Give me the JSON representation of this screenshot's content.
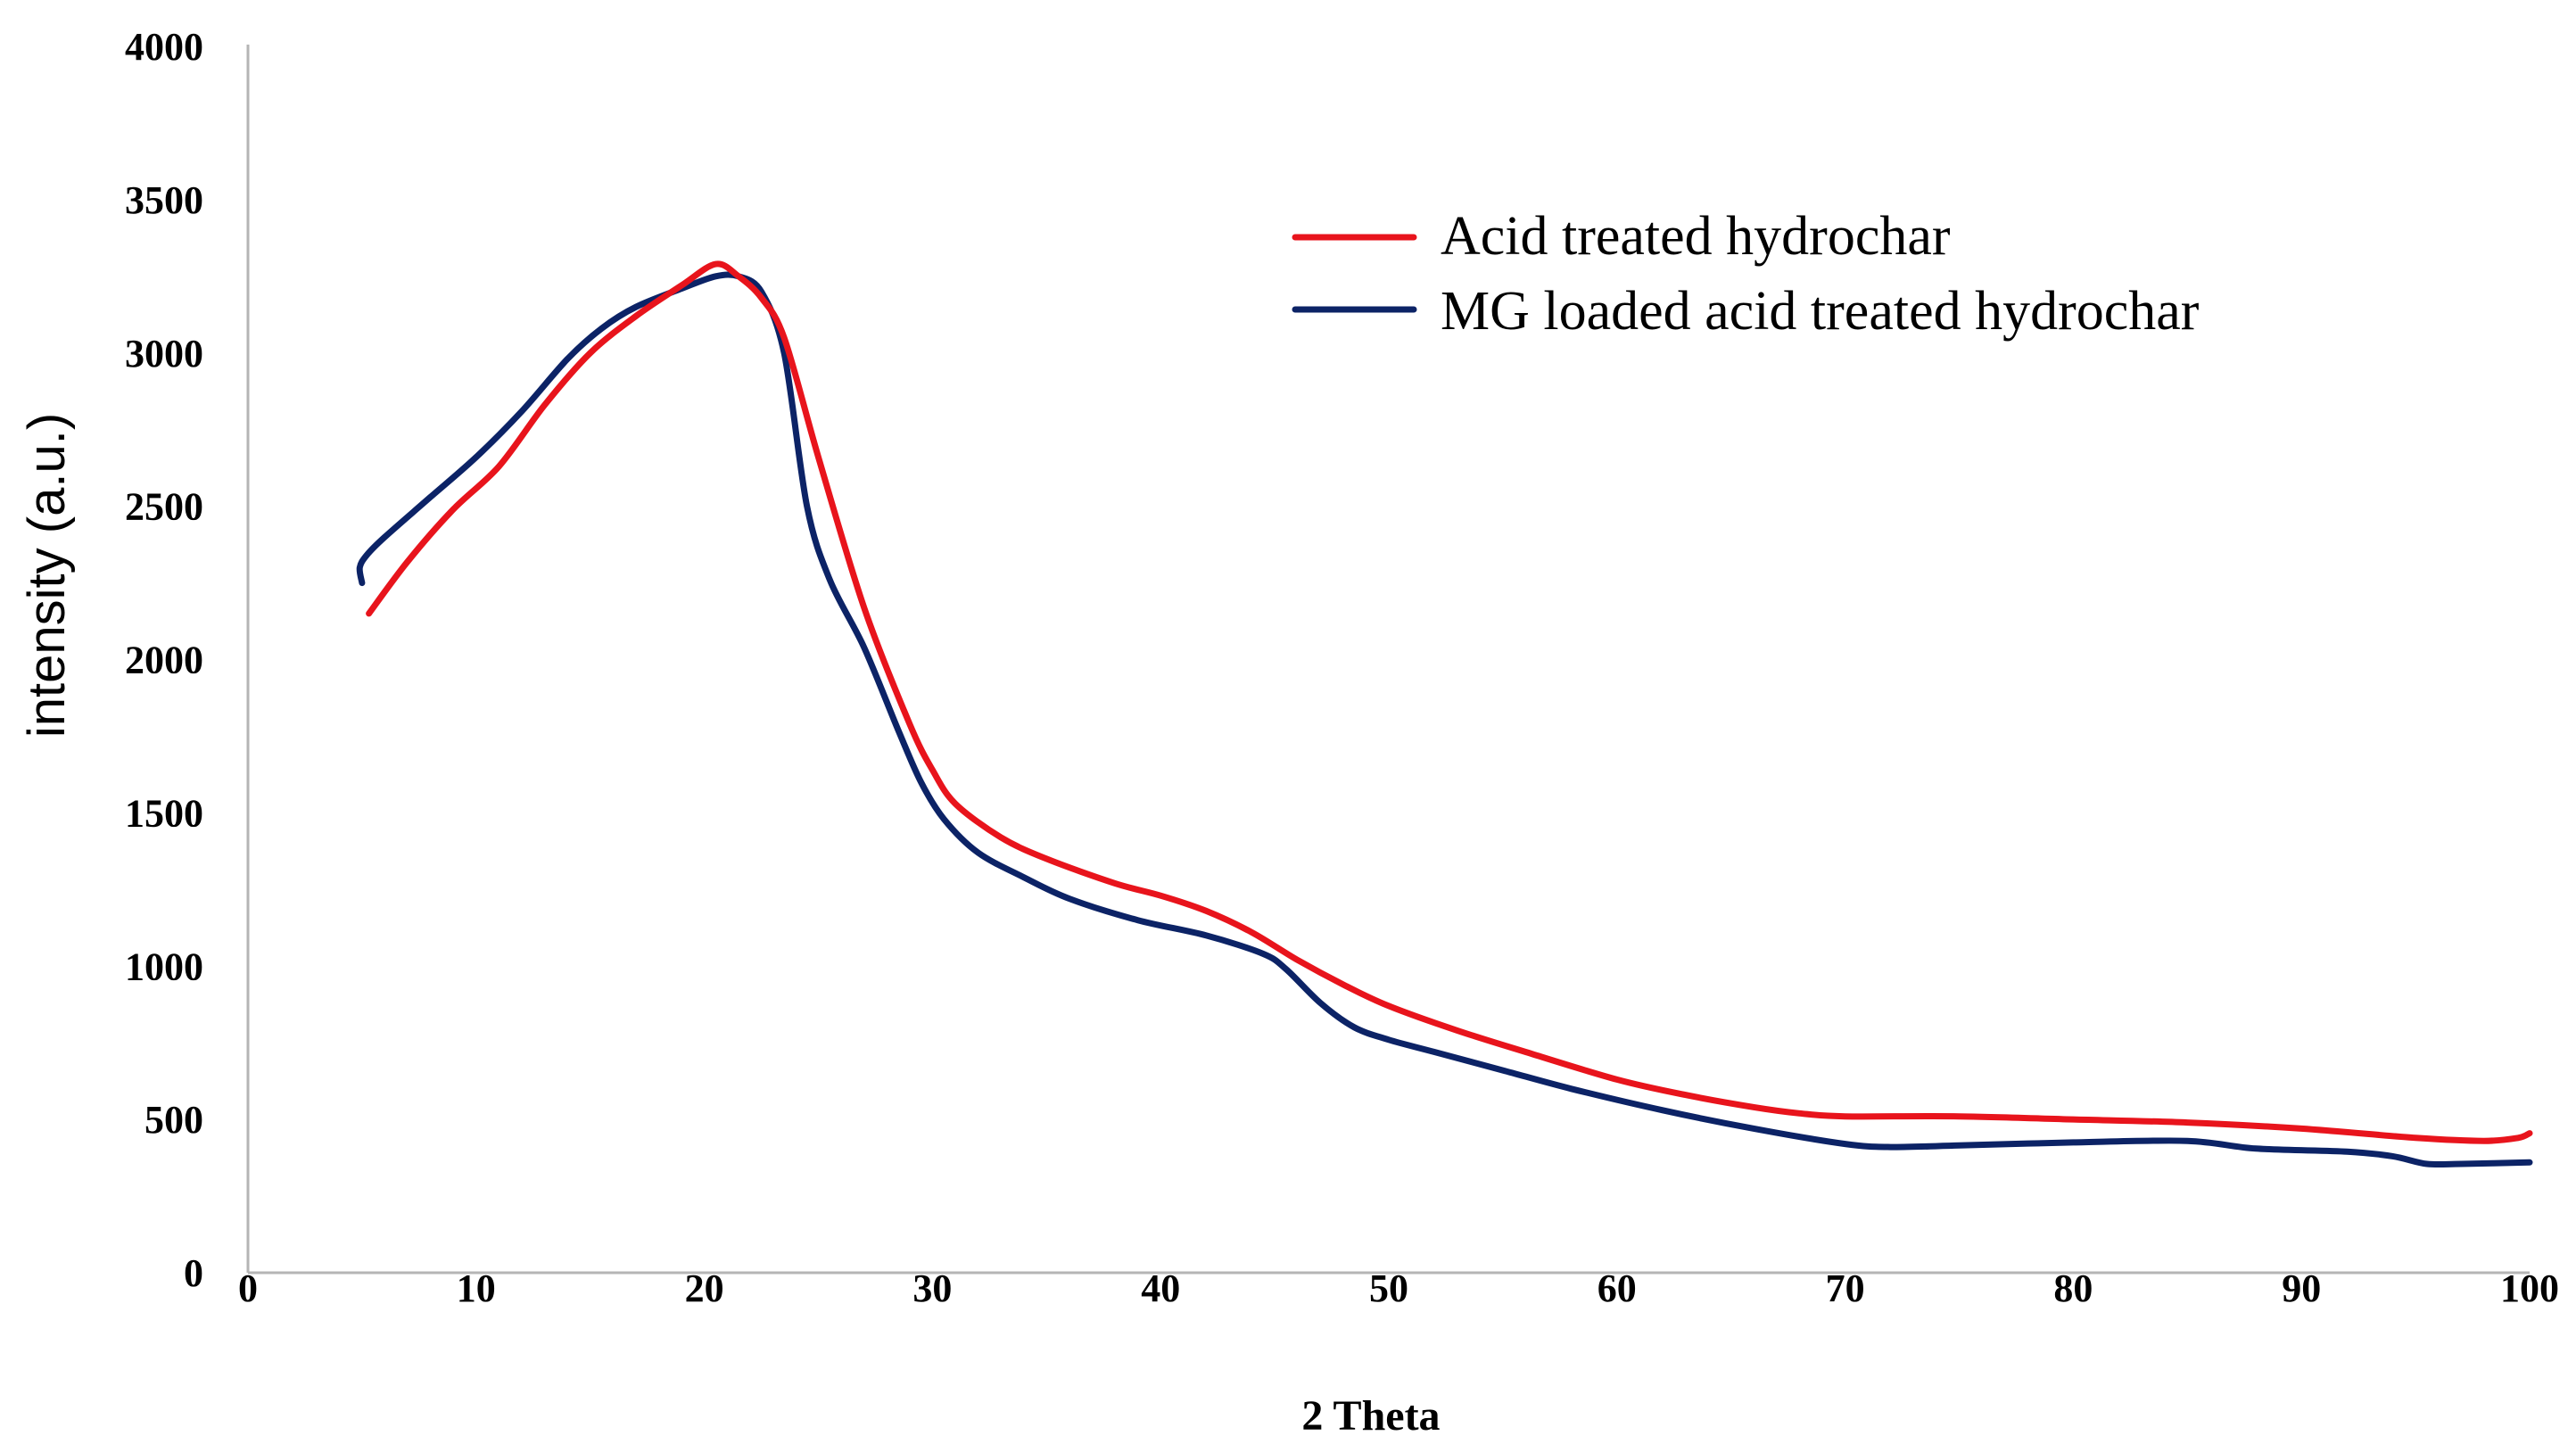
{
  "chart_data": {
    "type": "line",
    "title": "",
    "xlabel": "2 Theta",
    "ylabel": "intensity (a.u.)",
    "xlim": [
      0,
      100
    ],
    "ylim": [
      0,
      4000
    ],
    "xticks": [
      0,
      10,
      20,
      30,
      40,
      50,
      60,
      70,
      80,
      90,
      100
    ],
    "yticks": [
      0,
      500,
      1000,
      1500,
      2000,
      2500,
      3000,
      3500,
      4000
    ],
    "grid": false,
    "legend_position": "top-right",
    "series": [
      {
        "name": "Acid treated hydrochar",
        "color": "#e8141c",
        "x": [
          5.3,
          7,
          9,
          11,
          13,
          15,
          17,
          19,
          20.5,
          21.5,
          22.5,
          23.5,
          25,
          27,
          29,
          30,
          31,
          33,
          35,
          38,
          40,
          42,
          44,
          46,
          48,
          50,
          53,
          56,
          60,
          63,
          66,
          68,
          70,
          75,
          80,
          85,
          90,
          95,
          98,
          99.5,
          100
        ],
        "y": [
          2150,
          2320,
          2490,
          2630,
          2830,
          3000,
          3120,
          3220,
          3290,
          3250,
          3180,
          3050,
          2660,
          2170,
          1790,
          1640,
          1530,
          1420,
          1350,
          1270,
          1230,
          1180,
          1110,
          1020,
          940,
          870,
          790,
          720,
          630,
          580,
          540,
          520,
          510,
          510,
          500,
          490,
          470,
          440,
          430,
          440,
          455
        ]
      },
      {
        "name": "MG loaded acid treated hydrochar",
        "color": "#0c2366",
        "x": [
          5,
          4.9,
          5.2,
          6,
          8,
          10,
          12,
          14,
          15.5,
          17,
          19,
          20.5,
          21.5,
          22.5,
          23.5,
          24.5,
          25.5,
          27,
          28.5,
          29.5,
          30.5,
          32,
          34,
          36,
          39,
          42,
          44.5,
          45.5,
          47,
          48.5,
          50,
          52,
          55,
          58,
          62,
          66,
          70,
          72,
          75,
          80,
          85,
          88,
          92,
          94,
          95.5,
          97,
          100
        ],
        "y": [
          2250,
          2300,
          2340,
          2400,
          2530,
          2660,
          2810,
          2980,
          3080,
          3150,
          3210,
          3250,
          3250,
          3200,
          3000,
          2500,
          2260,
          2040,
          1770,
          1600,
          1480,
          1370,
          1290,
          1220,
          1150,
          1100,
          1040,
          990,
          880,
          800,
          760,
          720,
          660,
          600,
          530,
          470,
          420,
          410,
          415,
          425,
          430,
          405,
          395,
          380,
          355,
          355,
          360
        ]
      }
    ]
  }
}
